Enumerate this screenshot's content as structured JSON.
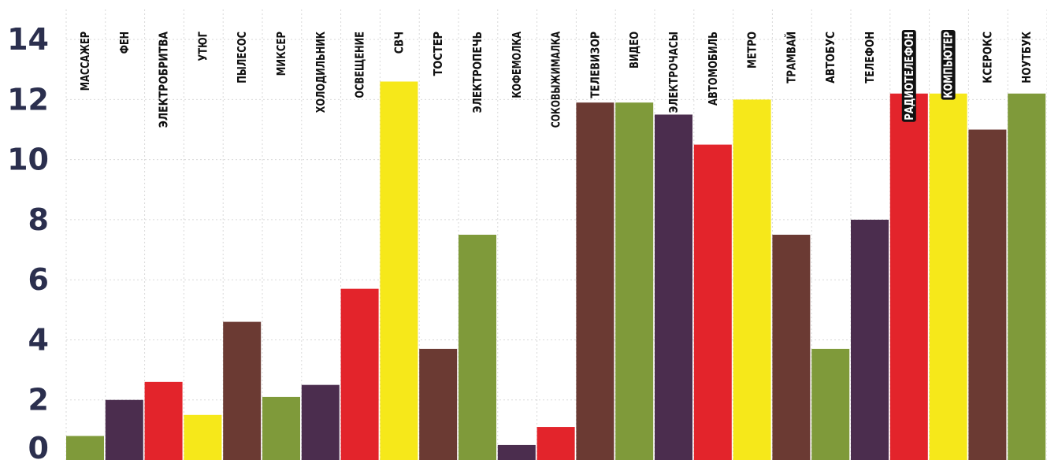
{
  "chart_data": {
    "type": "bar",
    "title": "",
    "xlabel": "",
    "ylabel": "",
    "ylim": [
      0,
      15
    ],
    "yticks": [
      0,
      2,
      4,
      6,
      8,
      10,
      12,
      14
    ],
    "grid": true,
    "categories": [
      "МАССАЖЕР",
      "ФЕН",
      "ЭЛЕКТРОБРИТВА",
      "УТЮГ",
      "ПЫЛЕСОС",
      "МИКСЕР",
      "ХОЛОДИЛЬНИК",
      "ОСВЕЩЕНИЕ",
      "СВЧ",
      "ТОСТЕР",
      "ЭЛЕКТРОПЕЧЬ",
      "КОФЕМОЛКА",
      "СОКОВЫЖИМАЛКА",
      "ТЕЛЕВИЗОР",
      "ВИДЕО",
      "ЭЛЕКТРОЧАСЫ",
      "АВТОМОБИЛЬ",
      "МЕТРО",
      "ТРАМВАЙ",
      "АВТОБУС",
      "ТЕЛЕФОН",
      "РАДИОТЕЛЕФОН",
      "КОМПЬЮТЕР",
      "КСЕРОКС",
      "НОУТБУК"
    ],
    "values": [
      0.8,
      2.0,
      2.6,
      1.5,
      4.6,
      2.1,
      2.5,
      5.7,
      12.6,
      3.7,
      7.5,
      0.5,
      1.1,
      11.9,
      11.9,
      11.5,
      10.5,
      12.0,
      7.5,
      3.7,
      8.0,
      12.2,
      12.2,
      11.0,
      12.2
    ],
    "colors": [
      "#7f9a3a",
      "#4b2d4e",
      "#e3242b",
      "#f6e81a",
      "#6b3a33",
      "#7f9a3a",
      "#4b2d4e",
      "#e3242b",
      "#f6e81a",
      "#6b3a33",
      "#7f9a3a",
      "#4b2d4e",
      "#e3242b",
      "#6b3a33",
      "#7f9a3a",
      "#4b2d4e",
      "#e3242b",
      "#f6e81a",
      "#6b3a33",
      "#7f9a3a",
      "#4b2d4e",
      "#e3242b",
      "#f6e81a",
      "#6b3a33",
      "#7f9a3a"
    ],
    "legend": "none"
  }
}
